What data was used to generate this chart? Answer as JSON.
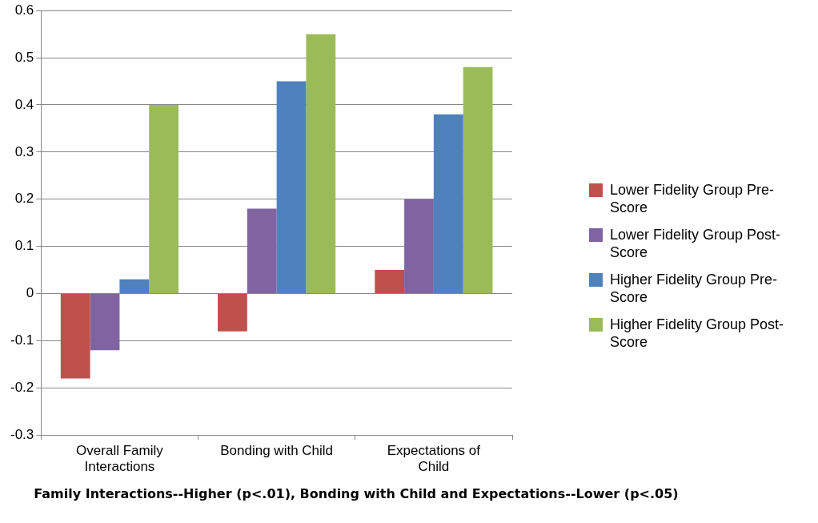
{
  "chart_data": {
    "type": "bar",
    "xlabel": "Family Interactions--Higher (p<.01), Bonding with Child and Expectations--Lower (p<.05)",
    "categories": [
      "Overall Family Interactions",
      "Bonding with Child",
      "Expectations of Child"
    ],
    "series": [
      {
        "name": "Lower Fidelity Group Pre-Score",
        "color": "#c0504d",
        "values": [
          -0.18,
          -0.08,
          0.05
        ]
      },
      {
        "name": "Lower Fidelity Group Post-Score",
        "color": "#8064a2",
        "values": [
          -0.12,
          0.18,
          0.2
        ]
      },
      {
        "name": "Higher Fidelity Group Pre-Score",
        "color": "#4f81bd",
        "values": [
          0.03,
          0.45,
          0.38
        ]
      },
      {
        "name": "Higher Fidelity Group Post-Score",
        "color": "#9bbb59",
        "values": [
          0.4,
          0.55,
          0.48
        ]
      }
    ],
    "ylim": [
      -0.3,
      0.6
    ],
    "yticks": [
      -0.3,
      -0.2,
      -0.1,
      0,
      0.1,
      0.2,
      0.3,
      0.4,
      0.5,
      0.6
    ],
    "grid": "y",
    "legend": "right"
  }
}
